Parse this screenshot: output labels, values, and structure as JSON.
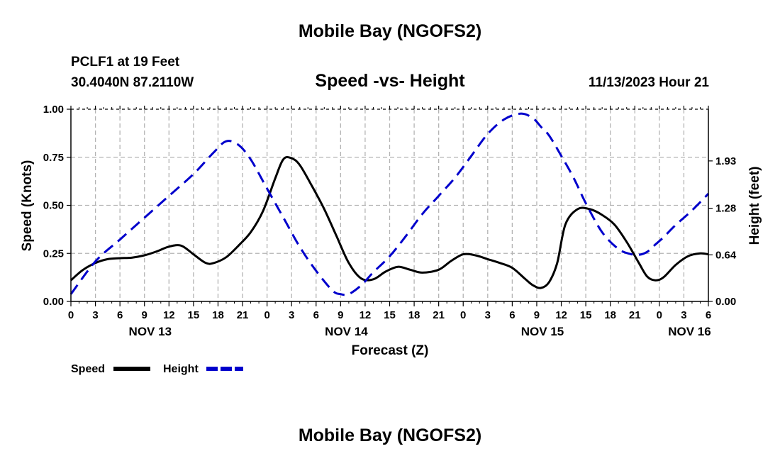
{
  "header": {
    "title": "Mobile Bay (NGOFS2)",
    "station": "PCLF1 at 19 Feet",
    "location": "30.4040N  87.2110W",
    "datetime": "11/13/2023 Hour 21"
  },
  "footer": {
    "title": "Mobile Bay (NGOFS2)"
  },
  "chart_data": {
    "type": "line",
    "title": "Speed -vs- Height",
    "xlabel": "Forecast (Z)",
    "ylabel": "Speed (Knots)",
    "y2label": "Height (feet)",
    "xlim": [
      0,
      78
    ],
    "ylim": [
      0,
      1.0
    ],
    "y2lim": [
      0,
      2.64
    ],
    "x_tick_labels": [
      "0",
      "3",
      "6",
      "9",
      "12",
      "15",
      "18",
      "21",
      "0",
      "3",
      "6",
      "9",
      "12",
      "15",
      "18",
      "21",
      "0",
      "3",
      "6",
      "9",
      "12",
      "15",
      "18",
      "21",
      "0",
      "3",
      "6"
    ],
    "day_labels": [
      {
        "label": "NOV 13",
        "x": 9.7
      },
      {
        "label": "NOV 14",
        "x": 33.7
      },
      {
        "label": "NOV 15",
        "x": 57.7
      },
      {
        "label": "NOV 16",
        "x": 75.7
      }
    ],
    "y_ticks": [
      "0.00",
      "0.25",
      "0.50",
      "0.75",
      "1.00"
    ],
    "y2_ticks": [
      {
        "label": "0.00",
        "value": 0.0
      },
      {
        "label": "0.64",
        "value": 0.64
      },
      {
        "label": "1.28",
        "value": 1.28
      },
      {
        "label": "1.93",
        "value": 1.93
      }
    ],
    "grid": true,
    "series": [
      {
        "name": "Speed",
        "color": "#000000",
        "style": "solid",
        "axis": "left",
        "x": [
          0,
          1.5,
          3,
          4.5,
          6,
          7.5,
          9,
          10.5,
          12,
          13.5,
          15,
          16.5,
          17.5,
          19,
          20.5,
          22,
          23.5,
          25,
          26,
          27,
          28,
          29.5,
          31,
          32.5,
          34,
          35.5,
          37,
          38.5,
          40,
          41.5,
          43,
          45,
          46.5,
          48,
          49.5,
          51,
          52.5,
          54,
          55.5,
          56.5,
          57.5,
          58.5,
          59.5,
          60.5,
          62,
          63.5,
          65,
          66.5,
          68,
          69.5,
          70.5,
          71.5,
          72.5,
          74,
          75.5,
          77,
          78
        ],
        "values": [
          0.11,
          0.165,
          0.2,
          0.22,
          0.225,
          0.228,
          0.24,
          0.26,
          0.285,
          0.29,
          0.245,
          0.2,
          0.2,
          0.23,
          0.29,
          0.36,
          0.47,
          0.64,
          0.74,
          0.745,
          0.71,
          0.6,
          0.48,
          0.34,
          0.2,
          0.12,
          0.115,
          0.155,
          0.18,
          0.165,
          0.15,
          0.165,
          0.21,
          0.245,
          0.24,
          0.22,
          0.2,
          0.175,
          0.12,
          0.085,
          0.07,
          0.1,
          0.2,
          0.4,
          0.48,
          0.48,
          0.45,
          0.4,
          0.31,
          0.2,
          0.13,
          0.11,
          0.125,
          0.19,
          0.235,
          0.25,
          0.245
        ]
      },
      {
        "name": "Height",
        "color": "#0000cc",
        "style": "dashed",
        "axis": "right",
        "x": [
          0,
          3,
          6,
          9,
          12,
          15,
          17.5,
          19,
          20.5,
          22,
          24,
          26,
          28,
          30,
          32,
          33,
          34,
          35.5,
          37,
          39,
          41,
          43,
          45,
          47,
          49,
          51,
          53,
          55,
          56.5,
          57.5,
          58.5,
          60,
          61.5,
          63,
          65,
          67,
          68.5,
          69.5,
          70.5,
          71.5,
          72.5,
          74,
          76,
          78
        ],
        "values": [
          0.1,
          0.55,
          0.85,
          1.15,
          1.45,
          1.75,
          2.05,
          2.2,
          2.15,
          1.95,
          1.55,
          1.15,
          0.75,
          0.42,
          0.15,
          0.1,
          0.1,
          0.22,
          0.4,
          0.62,
          0.9,
          1.2,
          1.45,
          1.7,
          2.0,
          2.3,
          2.5,
          2.58,
          2.52,
          2.4,
          2.28,
          2.0,
          1.7,
          1.35,
          0.95,
          0.72,
          0.65,
          0.64,
          0.68,
          0.78,
          0.88,
          1.05,
          1.25,
          1.48
        ]
      }
    ],
    "legend_position": "bottom-left"
  }
}
